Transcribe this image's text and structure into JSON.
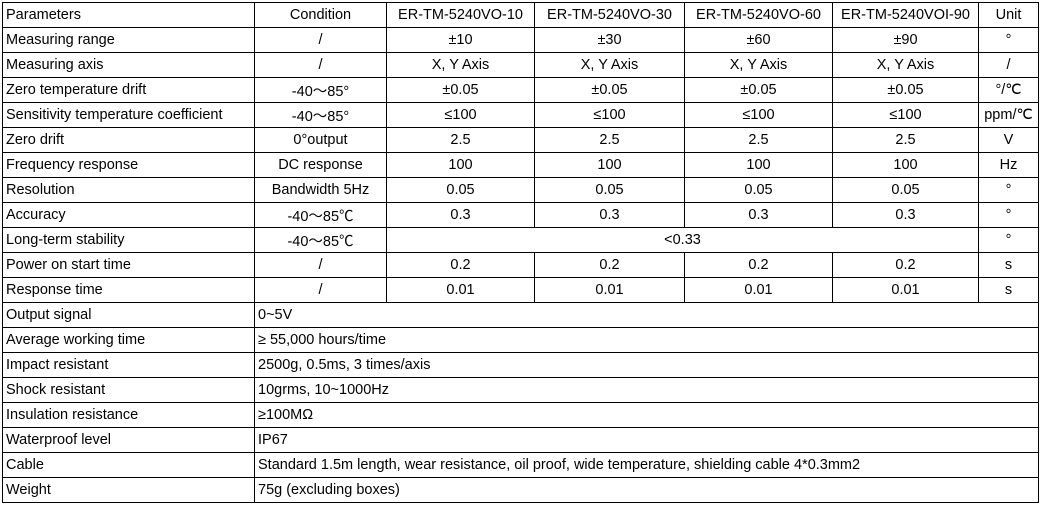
{
  "table": {
    "header": [
      "Parameters",
      "Condition",
      "ER-TM-5240VO-10",
      "ER-TM-5240VO-30",
      "ER-TM-5240VO-60",
      "ER-TM-5240VOI-90",
      "Unit"
    ],
    "rows": [
      [
        "Measuring range",
        "/",
        "±10",
        "±30",
        "±60",
        "±90",
        "°"
      ],
      [
        "Measuring axis",
        "/",
        "X, Y Axis",
        "X, Y Axis",
        "X, Y Axis",
        "X, Y Axis",
        "/"
      ],
      [
        "Zero temperature drift",
        "-40～85°",
        "±0.05",
        "±0.05",
        "±0.05",
        "±0.05",
        "°/℃"
      ],
      [
        "Sensitivity temperature coefficient",
        "-40～85°",
        "≤100",
        "≤100",
        "≤100",
        "≤100",
        "ppm/℃"
      ],
      [
        "Zero drift",
        "0°output",
        "2.5",
        "2.5",
        "2.5",
        "2.5",
        "V"
      ],
      [
        "Frequency response",
        "DC response",
        "100",
        "100",
        "100",
        "100",
        "Hz"
      ],
      [
        "Resolution",
        "Bandwidth 5Hz",
        "0.05",
        "0.05",
        "0.05",
        "0.05",
        "°"
      ],
      [
        "Accuracy",
        "-40～85℃",
        "0.3",
        "0.3",
        "0.3",
        "0.3",
        "°"
      ],
      [
        "Long-term stability",
        "-40～85℃",
        "<0.33",
        "°"
      ],
      [
        "Power on start time",
        "/",
        "0.2",
        "0.2",
        "0.2",
        "0.2",
        "s"
      ],
      [
        "Response time",
        "/",
        "0.01",
        "0.01",
        "0.01",
        "0.01",
        "s"
      ],
      [
        "Output signal",
        "0~5V"
      ],
      [
        "Average working time",
        "≥ 55,000 hours/time"
      ],
      [
        "Impact resistant",
        "2500g, 0.5ms, 3 times/axis"
      ],
      [
        "Shock resistant",
        "10grms, 10~1000Hz"
      ],
      [
        "Insulation resistance",
        "≥100MΩ"
      ],
      [
        "Waterproof level",
        "IP67"
      ],
      [
        "Cable",
        "Standard 1.5m length, wear resistance, oil proof, wide temperature, shielding cable 4*0.3mm2"
      ],
      [
        "Weight",
        "75g (excluding boxes)"
      ]
    ]
  }
}
